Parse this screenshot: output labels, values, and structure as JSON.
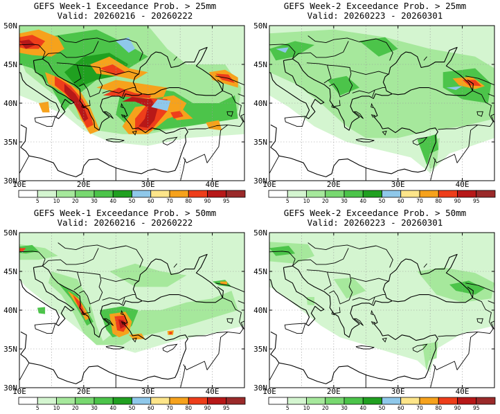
{
  "panels": [
    {
      "title": "GEFS Week-1 Exceedance Prob. > 25mm",
      "valid": "Valid: 20260216 - 20260222"
    },
    {
      "title": "GEFS Week-2 Exceedance Prob. > 25mm",
      "valid": "Valid: 20260223 - 20260301"
    },
    {
      "title": "GEFS Week-1 Exceedance Prob. > 50mm",
      "valid": "Valid: 20260216 - 20260222"
    },
    {
      "title": "GEFS Week-2 Exceedance Prob. > 50mm",
      "valid": "Valid: 20260223 - 20260301"
    }
  ],
  "lat_labels": [
    "50N",
    "45N",
    "40N",
    "35N",
    "30N"
  ],
  "lon_labels": [
    "10E",
    "20E",
    "30E",
    "40E"
  ],
  "colorbar": {
    "levels": [
      "5",
      "10",
      "20",
      "30",
      "40",
      "50",
      "60",
      "70",
      "80",
      "90",
      "95"
    ],
    "colors": [
      "#ffffff",
      "#d4f5d0",
      "#a6e89c",
      "#78d870",
      "#4cc44a",
      "#20a020",
      "#8fc8ea",
      "#fde58a",
      "#f6a21c",
      "#ee3e1a",
      "#b71818",
      "#9a2a2a"
    ]
  },
  "colors": {
    "land_green": "#a6e89c",
    "mid_green": "#4cc44a",
    "dark_green": "#20a020",
    "light_blue": "#8fc8ea",
    "orange": "#f6a21c",
    "red": "#ee3e1a",
    "dark_red": "#b71818",
    "yellow": "#fde58a",
    "pale_green": "#d4f5d0"
  }
}
